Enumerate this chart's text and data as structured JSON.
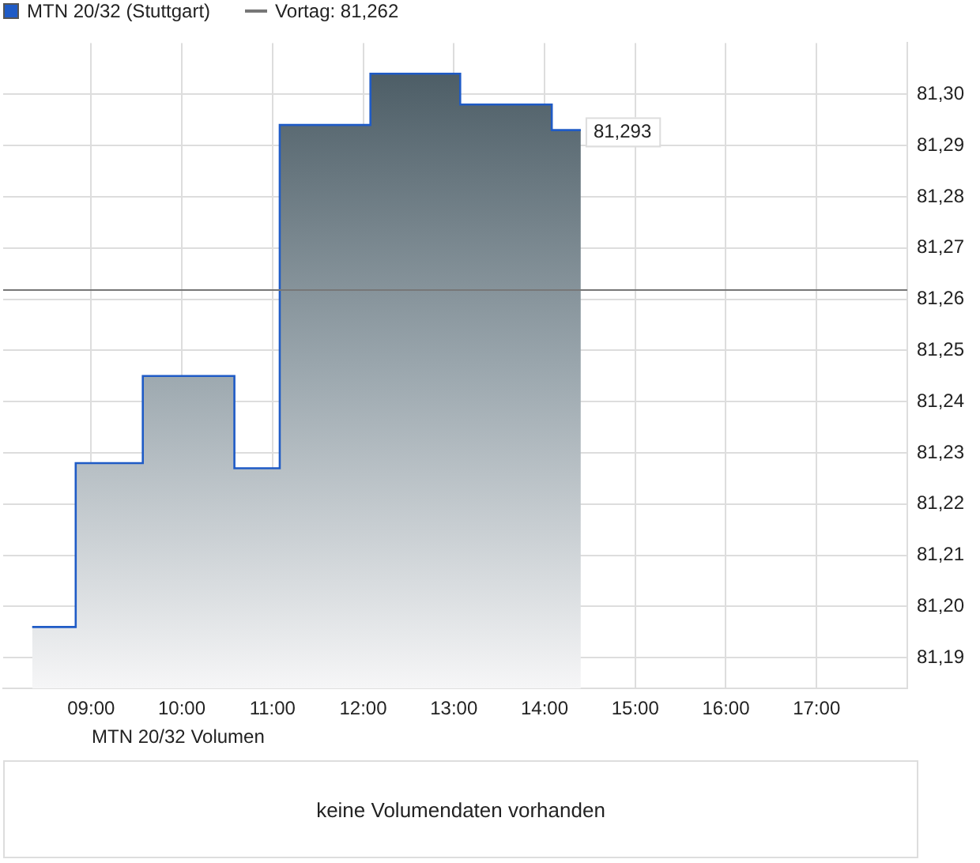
{
  "chart_data": [
    {
      "type": "area",
      "legend": "top left",
      "grid": true,
      "marker": "none",
      "series": [
        {
          "name": "MTN 20/32 (Stuttgart)",
          "color": "#1f5bc6",
          "x": [
            8.35,
            8.83,
            8.83,
            9.57,
            9.57,
            10.58,
            10.58,
            11.08,
            11.08,
            12.08,
            12.08,
            13.07,
            13.07,
            14.08,
            14.08,
            14.4
          ],
          "values": [
            81.196,
            81.196,
            81.228,
            81.228,
            81.245,
            81.245,
            81.227,
            81.227,
            81.294,
            81.294,
            81.304,
            81.304,
            81.298,
            81.298,
            81.293,
            81.293
          ]
        }
      ],
      "xlim": [
        8.03,
        18.0
      ],
      "xticks": [
        {
          "value": 9,
          "label": "09:00"
        },
        {
          "value": 10,
          "label": "10:00"
        },
        {
          "value": 11,
          "label": "11:00"
        },
        {
          "value": 12,
          "label": "12:00"
        },
        {
          "value": 13,
          "label": "13:00"
        },
        {
          "value": 14,
          "label": "14:00"
        },
        {
          "value": 15,
          "label": "15:00"
        },
        {
          "value": 16,
          "label": "16:00"
        },
        {
          "value": 17,
          "label": "17:00"
        }
      ],
      "ylim": [
        81.184,
        81.31
      ],
      "yticks": [
        {
          "value": 81.19,
          "label": "81,19"
        },
        {
          "value": 81.2,
          "label": "81,20"
        },
        {
          "value": 81.21,
          "label": "81,21"
        },
        {
          "value": 81.22,
          "label": "81,22"
        },
        {
          "value": 81.23,
          "label": "81,23"
        },
        {
          "value": 81.24,
          "label": "81,24"
        },
        {
          "value": 81.25,
          "label": "81,25"
        },
        {
          "value": 81.26,
          "label": "81,26"
        },
        {
          "value": 81.27,
          "label": "81,27"
        },
        {
          "value": 81.28,
          "label": "81,28"
        },
        {
          "value": 81.29,
          "label": "81,29"
        },
        {
          "value": 81.3,
          "label": "81,30"
        }
      ],
      "ref_lines": [
        {
          "axis": "y",
          "value": 81.262,
          "label": "Vortag: 81,262",
          "color": "#777777"
        }
      ],
      "annotations": [
        {
          "text": "81,293",
          "x": 14.4,
          "y": 81.293
        }
      ]
    },
    {
      "type": "other",
      "title": "MTN 20/32 Volumen",
      "annotations": [
        "keine Volumendaten vorhanden"
      ]
    }
  ]
}
